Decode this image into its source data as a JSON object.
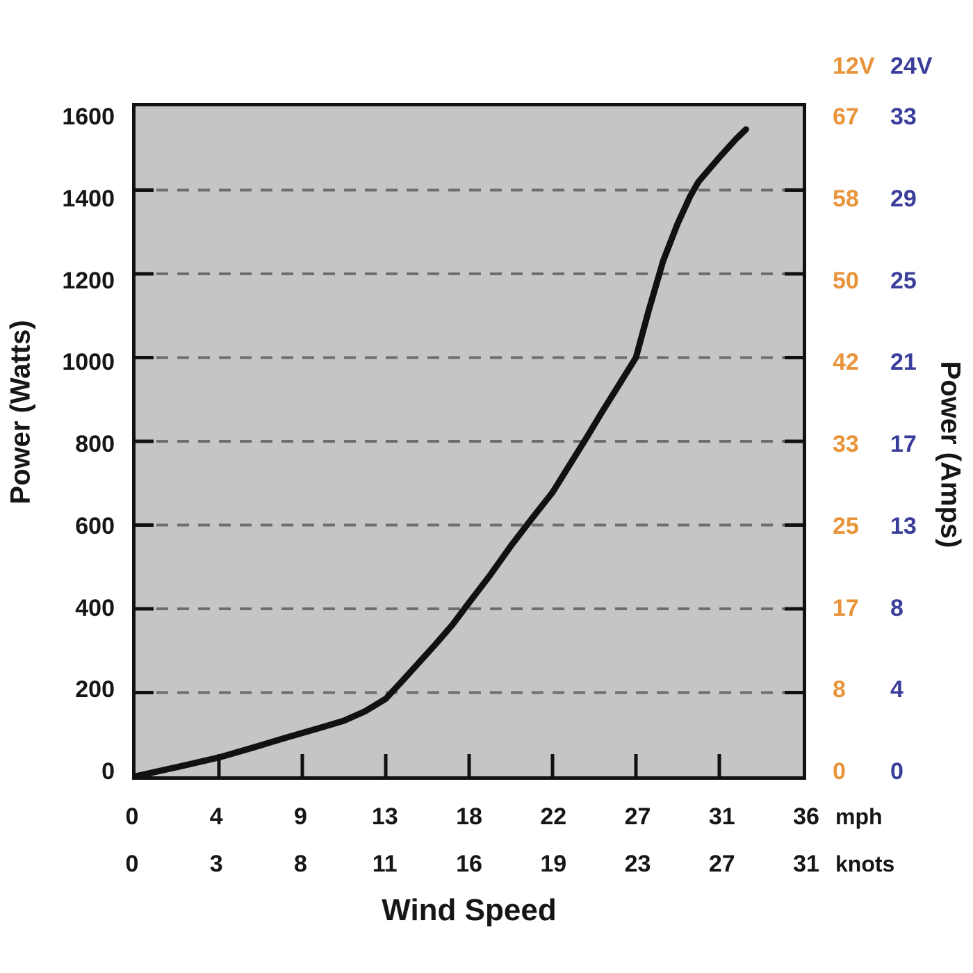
{
  "colors": {
    "plot_bg": "#C5C5C5",
    "grid": "#6E6E6E",
    "line": "#111111",
    "orange": "#E8943A",
    "navy": "#3A3D99",
    "text": "#161616"
  },
  "labels": {
    "x_axis_title": "Wind Speed",
    "y_axis_left_title": "Power (Watts)",
    "y_axis_right_title": "Power (Amps)",
    "mph_unit": "mph",
    "knots_unit": "knots",
    "amps_header_12v": "12V",
    "amps_header_24v": "24V"
  },
  "chart_data": {
    "type": "line",
    "title": "",
    "xlabel": "Wind Speed",
    "ylabel_left": "Power (Watts)",
    "ylabel_right": "Power (Amps)",
    "ylim": [
      0,
      1600
    ],
    "y_ticks_watts": [
      1600,
      1400,
      1200,
      1000,
      800,
      600,
      400,
      200,
      0
    ],
    "x_ticks_mph": [
      0,
      4,
      9,
      13,
      18,
      22,
      27,
      31,
      36
    ],
    "x_ticks_knots": [
      0,
      3,
      8,
      11,
      16,
      19,
      23,
      27,
      31
    ],
    "amps_12v": [
      67,
      58,
      50,
      42,
      33,
      25,
      17,
      8,
      0
    ],
    "amps_24v": [
      33,
      29,
      25,
      21,
      17,
      13,
      8,
      4,
      0
    ],
    "grid": "horizontal-dashed",
    "legend_position": "none",
    "series": [
      {
        "name": "power-curve",
        "points_mph_watts": [
          [
            0,
            0
          ],
          [
            2,
            22
          ],
          [
            4,
            45
          ],
          [
            6,
            68
          ],
          [
            8,
            92
          ],
          [
            10,
            118
          ],
          [
            11,
            133
          ],
          [
            12,
            155
          ],
          [
            13,
            185
          ],
          [
            14,
            228
          ],
          [
            15,
            272
          ],
          [
            16,
            316
          ],
          [
            17,
            362
          ],
          [
            18,
            415
          ],
          [
            19,
            480
          ],
          [
            20,
            550
          ],
          [
            21,
            615
          ],
          [
            22,
            678
          ],
          [
            23,
            742
          ],
          [
            24,
            806
          ],
          [
            25,
            872
          ],
          [
            26,
            936
          ],
          [
            27,
            1000
          ],
          [
            27.6,
            1110
          ],
          [
            28.3,
            1230
          ],
          [
            29,
            1320
          ],
          [
            29.6,
            1385
          ],
          [
            30,
            1420
          ],
          [
            31,
            1478
          ],
          [
            32,
            1522
          ],
          [
            32.6,
            1545
          ]
        ]
      }
    ]
  }
}
